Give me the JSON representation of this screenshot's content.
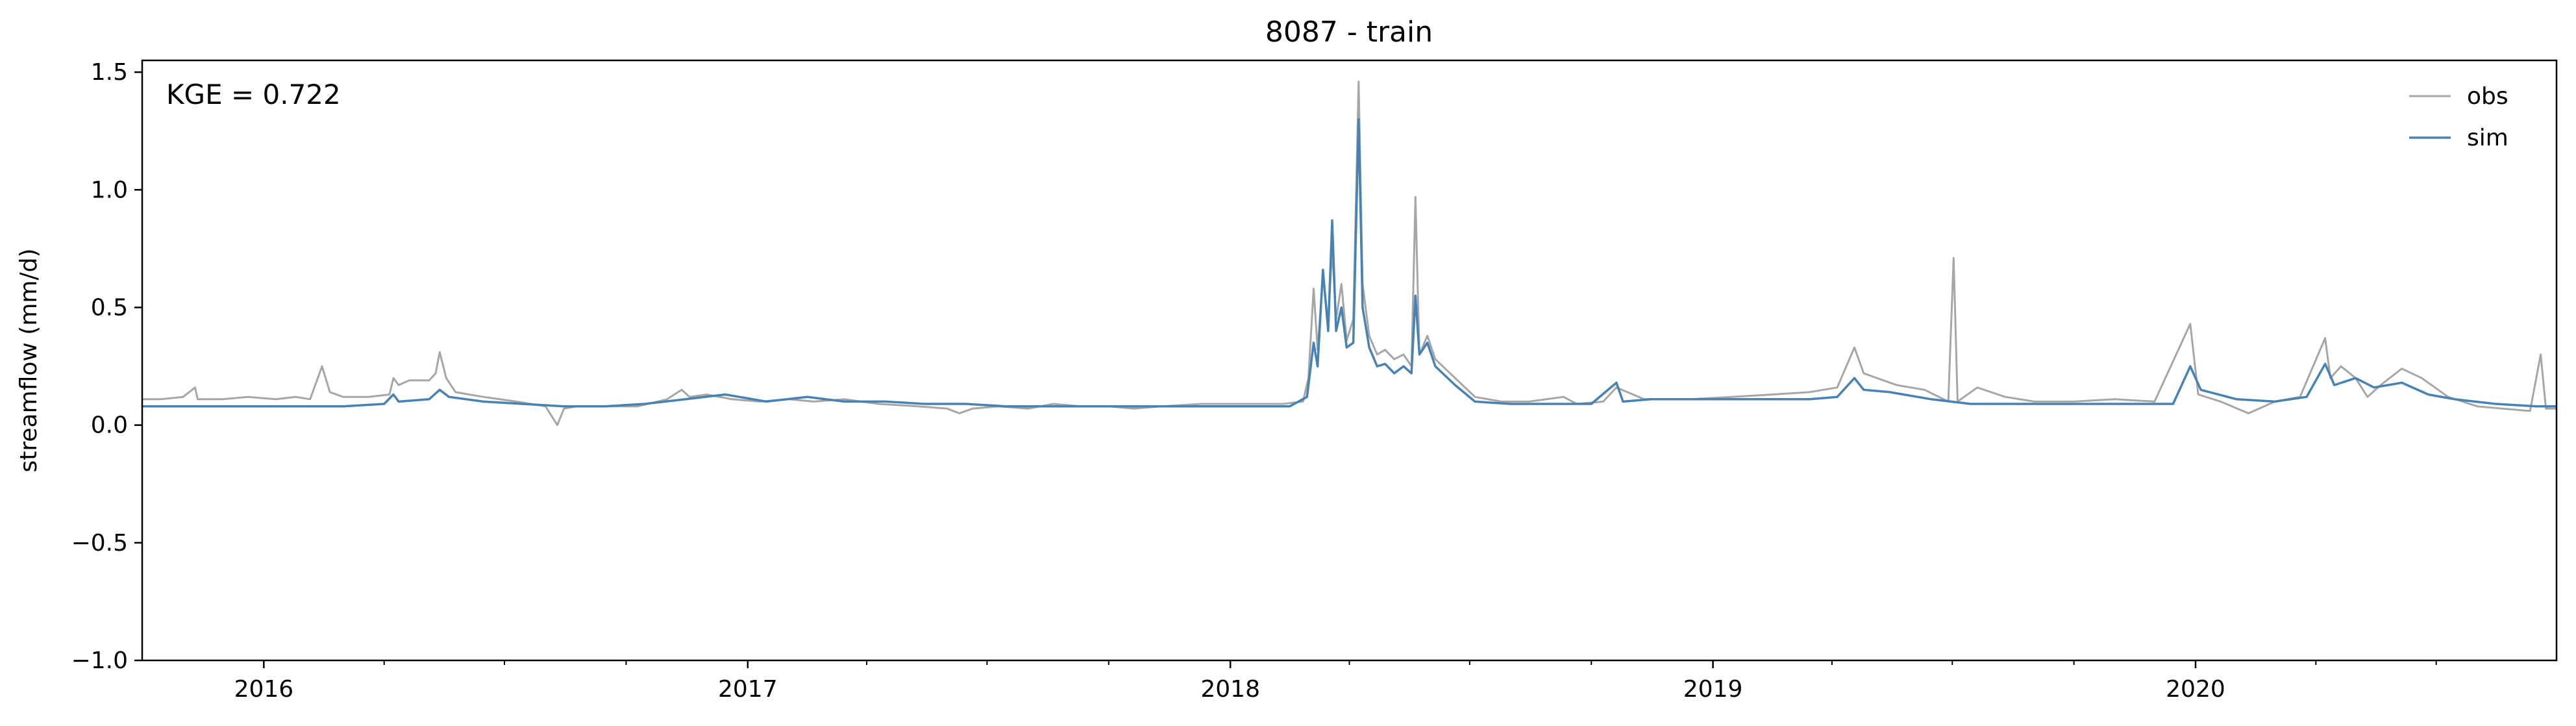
{
  "chart_data": {
    "type": "line",
    "title": "8087 - train",
    "xlabel": "",
    "ylabel": "streamflow (mm/d)",
    "x_range": [
      "2015-10-01",
      "2020-09-30"
    ],
    "x_ticks": [
      "2016-01-01",
      "2017-01-01",
      "2018-01-01",
      "2019-01-01",
      "2020-01-01"
    ],
    "x_tick_labels": [
      "2016",
      "2017",
      "2018",
      "2019",
      "2020"
    ],
    "ylim": [
      -1.0,
      1.55
    ],
    "y_ticks": [
      -1.0,
      -0.5,
      0.0,
      0.5,
      1.0,
      1.5
    ],
    "y_tick_labels": [
      "−1.0",
      "−0.5",
      "0.0",
      "0.5",
      "1.0",
      "1.5"
    ],
    "grid": false,
    "legend_position": "top-right",
    "annotation": "KGE = 0.722",
    "series": [
      {
        "name": "obs",
        "color": "#a6a6a6",
        "points": [
          [
            "2015-10-01",
            0.11
          ],
          [
            "2015-10-15",
            0.11
          ],
          [
            "2015-11-01",
            0.12
          ],
          [
            "2015-11-10",
            0.16
          ],
          [
            "2015-11-12",
            0.11
          ],
          [
            "2015-12-01",
            0.11
          ],
          [
            "2015-12-20",
            0.12
          ],
          [
            "2016-01-10",
            0.11
          ],
          [
            "2016-01-25",
            0.12
          ],
          [
            "2016-02-05",
            0.11
          ],
          [
            "2016-02-14",
            0.25
          ],
          [
            "2016-02-20",
            0.14
          ],
          [
            "2016-03-01",
            0.12
          ],
          [
            "2016-03-20",
            0.12
          ],
          [
            "2016-04-05",
            0.13
          ],
          [
            "2016-04-08",
            0.2
          ],
          [
            "2016-04-12",
            0.17
          ],
          [
            "2016-04-20",
            0.19
          ],
          [
            "2016-05-05",
            0.19
          ],
          [
            "2016-05-10",
            0.22
          ],
          [
            "2016-05-13",
            0.31
          ],
          [
            "2016-05-18",
            0.2
          ],
          [
            "2016-05-25",
            0.14
          ],
          [
            "2016-06-15",
            0.12
          ],
          [
            "2016-07-10",
            0.1
          ],
          [
            "2016-08-01",
            0.08
          ],
          [
            "2016-08-10",
            0.0
          ],
          [
            "2016-08-15",
            0.07
          ],
          [
            "2016-08-25",
            0.08
          ],
          [
            "2016-09-15",
            0.08
          ],
          [
            "2016-10-10",
            0.08
          ],
          [
            "2016-11-01",
            0.11
          ],
          [
            "2016-11-12",
            0.15
          ],
          [
            "2016-11-18",
            0.12
          ],
          [
            "2016-12-01",
            0.13
          ],
          [
            "2016-12-20",
            0.11
          ],
          [
            "2017-01-10",
            0.1
          ],
          [
            "2017-02-01",
            0.11
          ],
          [
            "2017-02-20",
            0.1
          ],
          [
            "2017-03-15",
            0.11
          ],
          [
            "2017-04-10",
            0.09
          ],
          [
            "2017-05-10",
            0.08
          ],
          [
            "2017-06-01",
            0.07
          ],
          [
            "2017-06-10",
            0.05
          ],
          [
            "2017-06-20",
            0.07
          ],
          [
            "2017-07-10",
            0.08
          ],
          [
            "2017-08-01",
            0.07
          ],
          [
            "2017-08-20",
            0.09
          ],
          [
            "2017-09-10",
            0.08
          ],
          [
            "2017-10-01",
            0.08
          ],
          [
            "2017-10-20",
            0.07
          ],
          [
            "2017-11-10",
            0.08
          ],
          [
            "2017-12-10",
            0.09
          ],
          [
            "2018-01-10",
            0.09
          ],
          [
            "2018-02-10",
            0.09
          ],
          [
            "2018-02-25",
            0.1
          ],
          [
            "2018-03-01",
            0.2
          ],
          [
            "2018-03-05",
            0.58
          ],
          [
            "2018-03-08",
            0.32
          ],
          [
            "2018-03-12",
            0.63
          ],
          [
            "2018-03-16",
            0.44
          ],
          [
            "2018-03-19",
            0.75
          ],
          [
            "2018-03-22",
            0.45
          ],
          [
            "2018-03-26",
            0.6
          ],
          [
            "2018-03-30",
            0.36
          ],
          [
            "2018-04-04",
            0.45
          ],
          [
            "2018-04-08",
            1.46
          ],
          [
            "2018-04-11",
            0.6
          ],
          [
            "2018-04-16",
            0.38
          ],
          [
            "2018-04-22",
            0.3
          ],
          [
            "2018-04-28",
            0.32
          ],
          [
            "2018-05-05",
            0.28
          ],
          [
            "2018-05-12",
            0.3
          ],
          [
            "2018-05-18",
            0.25
          ],
          [
            "2018-05-21",
            0.97
          ],
          [
            "2018-05-24",
            0.3
          ],
          [
            "2018-05-30",
            0.38
          ],
          [
            "2018-06-05",
            0.28
          ],
          [
            "2018-06-20",
            0.2
          ],
          [
            "2018-07-05",
            0.12
          ],
          [
            "2018-07-25",
            0.1
          ],
          [
            "2018-08-15",
            0.1
          ],
          [
            "2018-09-10",
            0.12
          ],
          [
            "2018-09-20",
            0.09
          ],
          [
            "2018-10-10",
            0.1
          ],
          [
            "2018-10-20",
            0.16
          ],
          [
            "2018-11-10",
            0.11
          ],
          [
            "2018-12-15",
            0.11
          ],
          [
            "2019-01-15",
            0.12
          ],
          [
            "2019-02-15",
            0.13
          ],
          [
            "2019-03-15",
            0.14
          ],
          [
            "2019-04-05",
            0.16
          ],
          [
            "2019-04-18",
            0.33
          ],
          [
            "2019-04-25",
            0.22
          ],
          [
            "2019-05-05",
            0.2
          ],
          [
            "2019-05-20",
            0.17
          ],
          [
            "2019-06-10",
            0.15
          ],
          [
            "2019-06-28",
            0.1
          ],
          [
            "2019-07-02",
            0.71
          ],
          [
            "2019-07-05",
            0.1
          ],
          [
            "2019-07-20",
            0.16
          ],
          [
            "2019-08-10",
            0.12
          ],
          [
            "2019-09-01",
            0.1
          ],
          [
            "2019-10-01",
            0.1
          ],
          [
            "2019-11-01",
            0.11
          ],
          [
            "2019-12-01",
            0.1
          ],
          [
            "2019-12-28",
            0.43
          ],
          [
            "2020-01-03",
            0.13
          ],
          [
            "2020-01-20",
            0.1
          ],
          [
            "2020-02-10",
            0.05
          ],
          [
            "2020-03-01",
            0.1
          ],
          [
            "2020-03-20",
            0.12
          ],
          [
            "2020-04-08",
            0.37
          ],
          [
            "2020-04-12",
            0.2
          ],
          [
            "2020-04-20",
            0.25
          ],
          [
            "2020-05-01",
            0.2
          ],
          [
            "2020-05-10",
            0.12
          ],
          [
            "2020-05-20",
            0.17
          ],
          [
            "2020-06-05",
            0.24
          ],
          [
            "2020-06-20",
            0.2
          ],
          [
            "2020-07-10",
            0.12
          ],
          [
            "2020-08-01",
            0.08
          ],
          [
            "2020-08-20",
            0.07
          ],
          [
            "2020-09-10",
            0.06
          ],
          [
            "2020-09-18",
            0.3
          ],
          [
            "2020-09-22",
            0.07
          ],
          [
            "2020-09-30",
            0.07
          ]
        ]
      },
      {
        "name": "sim",
        "color": "#4682b4",
        "points": [
          [
            "2015-10-01",
            0.08
          ],
          [
            "2015-11-01",
            0.08
          ],
          [
            "2015-12-01",
            0.08
          ],
          [
            "2016-01-01",
            0.08
          ],
          [
            "2016-02-01",
            0.08
          ],
          [
            "2016-03-01",
            0.08
          ],
          [
            "2016-04-01",
            0.09
          ],
          [
            "2016-04-08",
            0.13
          ],
          [
            "2016-04-12",
            0.1
          ],
          [
            "2016-05-05",
            0.11
          ],
          [
            "2016-05-13",
            0.15
          ],
          [
            "2016-05-20",
            0.12
          ],
          [
            "2016-06-15",
            0.1
          ],
          [
            "2016-07-15",
            0.09
          ],
          [
            "2016-08-15",
            0.08
          ],
          [
            "2016-09-15",
            0.08
          ],
          [
            "2016-10-15",
            0.09
          ],
          [
            "2016-11-15",
            0.11
          ],
          [
            "2016-12-15",
            0.13
          ],
          [
            "2017-01-15",
            0.1
          ],
          [
            "2017-02-15",
            0.12
          ],
          [
            "2017-03-15",
            0.1
          ],
          [
            "2017-04-15",
            0.1
          ],
          [
            "2017-05-15",
            0.09
          ],
          [
            "2017-06-15",
            0.09
          ],
          [
            "2017-07-15",
            0.08
          ],
          [
            "2017-08-15",
            0.08
          ],
          [
            "2017-09-15",
            0.08
          ],
          [
            "2017-10-15",
            0.08
          ],
          [
            "2017-11-15",
            0.08
          ],
          [
            "2017-12-15",
            0.08
          ],
          [
            "2018-01-15",
            0.08
          ],
          [
            "2018-02-15",
            0.08
          ],
          [
            "2018-02-28",
            0.12
          ],
          [
            "2018-03-05",
            0.35
          ],
          [
            "2018-03-08",
            0.25
          ],
          [
            "2018-03-12",
            0.66
          ],
          [
            "2018-03-16",
            0.4
          ],
          [
            "2018-03-19",
            0.87
          ],
          [
            "2018-03-22",
            0.4
          ],
          [
            "2018-03-26",
            0.5
          ],
          [
            "2018-03-30",
            0.33
          ],
          [
            "2018-04-04",
            0.35
          ],
          [
            "2018-04-08",
            1.3
          ],
          [
            "2018-04-11",
            0.5
          ],
          [
            "2018-04-16",
            0.33
          ],
          [
            "2018-04-22",
            0.25
          ],
          [
            "2018-04-28",
            0.26
          ],
          [
            "2018-05-05",
            0.22
          ],
          [
            "2018-05-12",
            0.25
          ],
          [
            "2018-05-18",
            0.22
          ],
          [
            "2018-05-21",
            0.55
          ],
          [
            "2018-05-24",
            0.3
          ],
          [
            "2018-05-30",
            0.35
          ],
          [
            "2018-06-05",
            0.25
          ],
          [
            "2018-06-20",
            0.17
          ],
          [
            "2018-07-05",
            0.1
          ],
          [
            "2018-08-01",
            0.09
          ],
          [
            "2018-09-01",
            0.09
          ],
          [
            "2018-10-01",
            0.09
          ],
          [
            "2018-10-20",
            0.18
          ],
          [
            "2018-10-25",
            0.1
          ],
          [
            "2018-11-15",
            0.11
          ],
          [
            "2018-12-15",
            0.11
          ],
          [
            "2019-01-15",
            0.11
          ],
          [
            "2019-02-15",
            0.11
          ],
          [
            "2019-03-15",
            0.11
          ],
          [
            "2019-04-05",
            0.12
          ],
          [
            "2019-04-18",
            0.2
          ],
          [
            "2019-04-25",
            0.15
          ],
          [
            "2019-05-15",
            0.14
          ],
          [
            "2019-06-15",
            0.11
          ],
          [
            "2019-07-15",
            0.09
          ],
          [
            "2019-08-15",
            0.09
          ],
          [
            "2019-09-15",
            0.09
          ],
          [
            "2019-10-15",
            0.09
          ],
          [
            "2019-11-15",
            0.09
          ],
          [
            "2019-12-15",
            0.09
          ],
          [
            "2019-12-28",
            0.25
          ],
          [
            "2020-01-05",
            0.15
          ],
          [
            "2020-02-01",
            0.11
          ],
          [
            "2020-03-01",
            0.1
          ],
          [
            "2020-03-25",
            0.12
          ],
          [
            "2020-04-08",
            0.26
          ],
          [
            "2020-04-15",
            0.17
          ],
          [
            "2020-05-01",
            0.2
          ],
          [
            "2020-05-15",
            0.16
          ],
          [
            "2020-06-05",
            0.18
          ],
          [
            "2020-06-25",
            0.13
          ],
          [
            "2020-07-15",
            0.11
          ],
          [
            "2020-08-15",
            0.09
          ],
          [
            "2020-09-15",
            0.08
          ],
          [
            "2020-09-30",
            0.08
          ]
        ]
      }
    ]
  }
}
